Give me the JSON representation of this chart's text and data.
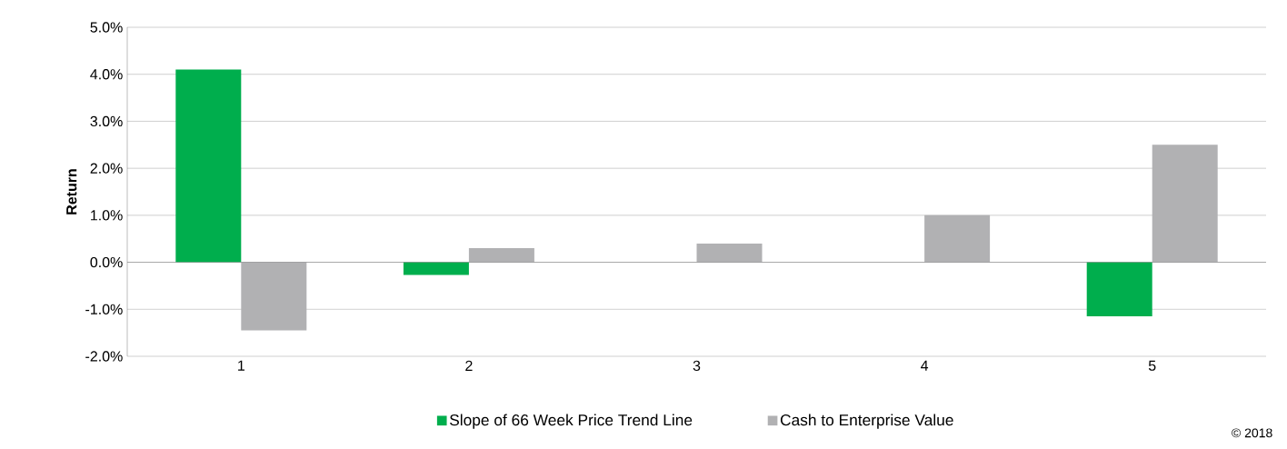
{
  "chart_data": {
    "type": "bar",
    "ylabel": "Return",
    "categories": [
      "1",
      "2",
      "3",
      "4",
      "5"
    ],
    "series": [
      {
        "name": "Slope of 66 Week Price Trend Line",
        "color": "#00ae4d",
        "values": [
          4.1,
          -0.27,
          0,
          0,
          -1.15
        ]
      },
      {
        "name": "Cash to Enterprise Value",
        "color": "#b1b1b3",
        "values": [
          -1.45,
          0.3,
          0.4,
          1.0,
          2.5
        ]
      }
    ],
    "ylim": [
      -2,
      5
    ],
    "yticks": [
      {
        "value": -2,
        "label": "-2.0%"
      },
      {
        "value": -1,
        "label": "-1.0%"
      },
      {
        "value": 0,
        "label": "0.0%"
      },
      {
        "value": 1,
        "label": "1.0%"
      },
      {
        "value": 2,
        "label": "2.0%"
      },
      {
        "value": 3,
        "label": "3.0%"
      },
      {
        "value": 4,
        "label": "4.0%"
      },
      {
        "value": 5,
        "label": "5.0%"
      }
    ],
    "grid": "y",
    "legend": "bottom",
    "annotations": [
      "© 2018"
    ]
  }
}
